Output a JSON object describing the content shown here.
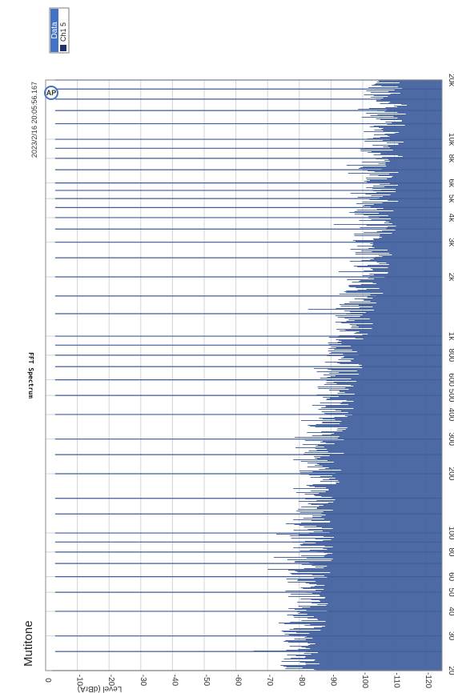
{
  "brand": "Mutitone",
  "timestamp": "2023/2/16 20:05:56.167",
  "colors": {
    "series": "#3f5d9c",
    "legend_header": "#4472c4",
    "grid": "#d4d4d4",
    "axis": "#888888"
  },
  "legend": {
    "title": "Data",
    "items": [
      {
        "label": "Ch1 5",
        "color": "#1f2f6b"
      }
    ]
  },
  "chart_data": {
    "type": "line",
    "title": "FFT Spectrum",
    "xlabel": "",
    "ylabel": "Level (dBrA)",
    "x_scale": "log",
    "xlim": [
      20,
      20000
    ],
    "ylim": [
      -125,
      0
    ],
    "grid": true,
    "legend_position": "top-right",
    "x_ticks": [
      {
        "value": 20,
        "label": "20"
      },
      {
        "value": 30,
        "label": "30"
      },
      {
        "value": 40,
        "label": "40"
      },
      {
        "value": 50,
        "label": "50"
      },
      {
        "value": 60,
        "label": "60"
      },
      {
        "value": 80,
        "label": "80"
      },
      {
        "value": 100,
        "label": "100"
      },
      {
        "value": 200,
        "label": "200"
      },
      {
        "value": 300,
        "label": "300"
      },
      {
        "value": 400,
        "label": "400"
      },
      {
        "value": 500,
        "label": "500"
      },
      {
        "value": 600,
        "label": "600"
      },
      {
        "value": 800,
        "label": "800"
      },
      {
        "value": 1000,
        "label": "1k"
      },
      {
        "value": 2000,
        "label": "2k"
      },
      {
        "value": 3000,
        "label": "3k"
      },
      {
        "value": 4000,
        "label": "4k"
      },
      {
        "value": 5000,
        "label": "5k"
      },
      {
        "value": 6000,
        "label": "6k"
      },
      {
        "value": 8000,
        "label": "8k"
      },
      {
        "value": 10000,
        "label": "10k"
      },
      {
        "value": 20000,
        "label": "20k"
      }
    ],
    "y_ticks": [
      {
        "value": 0,
        "label": "0"
      },
      {
        "value": -10,
        "label": "-10"
      },
      {
        "value": -20,
        "label": "-20"
      },
      {
        "value": -30,
        "label": "-30"
      },
      {
        "value": -40,
        "label": "-40"
      },
      {
        "value": -50,
        "label": "-50"
      },
      {
        "value": -60,
        "label": "-60"
      },
      {
        "value": -70,
        "label": "-70"
      },
      {
        "value": -80,
        "label": "-80"
      },
      {
        "value": -90,
        "label": "-90"
      },
      {
        "value": -100,
        "label": "-100"
      },
      {
        "value": -110,
        "label": "-110"
      },
      {
        "value": -120,
        "label": "-120"
      }
    ],
    "series": [
      {
        "name": "Ch1 5",
        "noise_floor_envelope": {
          "x": [
            20,
            25,
            30,
            40,
            50,
            60,
            80,
            100,
            150,
            200,
            300,
            400,
            500,
            600,
            800,
            1000,
            1500,
            2000,
            3000,
            4000,
            5000,
            6000,
            8000,
            10000,
            15000,
            20000
          ],
          "y": [
            -79,
            -80,
            -81,
            -82,
            -82,
            -83,
            -84,
            -84,
            -85,
            -86,
            -88,
            -90,
            -91,
            -92,
            -94,
            -96,
            -99,
            -101,
            -103,
            -104,
            -105,
            -105,
            -106,
            -106,
            -107,
            -107
          ]
        },
        "harmonic_spikes": {
          "x": [
            20,
            25,
            30,
            40,
            50,
            60,
            70,
            80,
            90,
            100,
            125,
            150,
            200,
            250,
            300,
            400,
            500,
            600,
            700,
            800,
            900,
            1000,
            1300,
            1600,
            2000,
            2500,
            3000,
            3500,
            4000,
            4500,
            5000,
            5500,
            6000,
            7000,
            8000,
            9000,
            10000,
            12000,
            14000,
            16000,
            18000,
            20000
          ],
          "y": [
            -2,
            -3,
            -3,
            -3,
            -3,
            -3,
            -3,
            -3,
            -3,
            -3,
            -3,
            -3,
            -3,
            -3,
            -3,
            -3,
            -3,
            -3,
            -3,
            -3,
            -3,
            -3,
            -3,
            -3,
            -3,
            -3,
            -3,
            -3,
            -3,
            -3,
            -3,
            -3,
            -3,
            -3,
            -3,
            -3,
            -3,
            -3,
            -3,
            -3,
            -3,
            -3
          ]
        }
      }
    ]
  }
}
